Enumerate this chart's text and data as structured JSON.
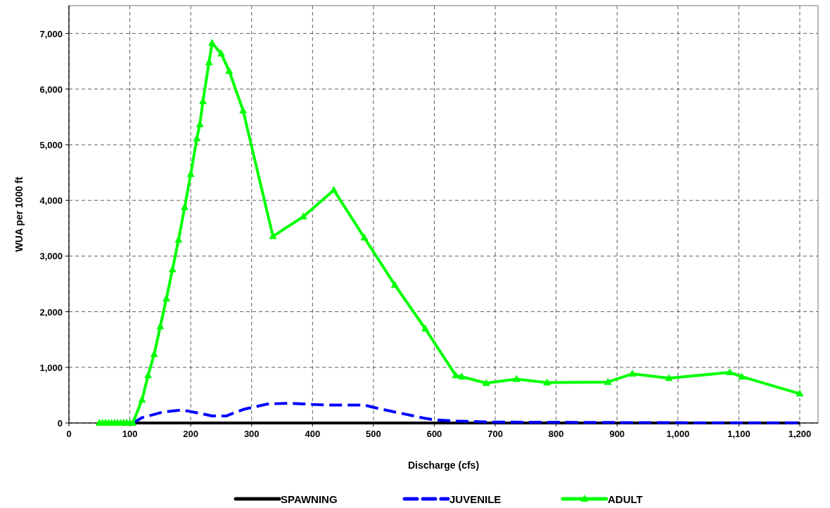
{
  "chart_data": {
    "type": "line",
    "xlabel": "Discharge (cfs)",
    "ylabel": "WUA per 1000 ft",
    "xlim": [
      0,
      1230
    ],
    "ylim": [
      0,
      7500
    ],
    "xticks": [
      0,
      100,
      200,
      300,
      400,
      500,
      600,
      700,
      800,
      900,
      {
        "value": 1000,
        "label": "1,000"
      },
      {
        "value": 1100,
        "label": "1,100"
      },
      {
        "value": 1200,
        "label": "1,200"
      }
    ],
    "yticks": [
      0,
      {
        "value": 1000,
        "label": "1,000"
      },
      {
        "value": 2000,
        "label": "2,000"
      },
      {
        "value": 3000,
        "label": "3,000"
      },
      {
        "value": 4000,
        "label": "4,000"
      },
      {
        "value": 5000,
        "label": "5,000"
      },
      {
        "value": 6000,
        "label": "6,000"
      },
      {
        "value": 7000,
        "label": "7,000"
      }
    ],
    "grid": true,
    "legend": "bottom",
    "series": [
      {
        "name": "SPAWNING",
        "color": "#000000",
        "line_style": "solid",
        "marker": "none",
        "x": [
          105,
          1200
        ],
        "values": [
          0,
          0
        ]
      },
      {
        "name": "JUVENILE",
        "color": "#0000ff",
        "line_style": "dashed",
        "marker": "none",
        "x": [
          105,
          120,
          155,
          180,
          190,
          220,
          235,
          258,
          287,
          326,
          361,
          400,
          426,
          485,
          500,
          533,
          586,
          602,
          636,
          700,
          800,
          900,
          1000,
          1100,
          1200
        ],
        "values": [
          0,
          95,
          199,
          228,
          225,
          164,
          126,
          126,
          246,
          341,
          355,
          333,
          322,
          322,
          281,
          202,
          81,
          54,
          34,
          15,
          12,
          8,
          5,
          3,
          2
        ]
      },
      {
        "name": "ADULT",
        "color": "#00ff00",
        "line_style": "solid",
        "marker": "triangle",
        "x": [
          50,
          55,
          60,
          65,
          70,
          75,
          80,
          85,
          90,
          95,
          100,
          105,
          120,
          130,
          140,
          150,
          160,
          170,
          180,
          190,
          200,
          210,
          215,
          220,
          230,
          235,
          250,
          263,
          286,
          335,
          385,
          435,
          485,
          535,
          585,
          635,
          645,
          685,
          735,
          785,
          885,
          925,
          985,
          1085,
          1105,
          1200
        ],
        "values": [
          0,
          0,
          0,
          0,
          0,
          0,
          0,
          0,
          0,
          0,
          0,
          0,
          417,
          856,
          1236,
          1736,
          2235,
          2758,
          3292,
          3877,
          4472,
          5114,
          5367,
          5780,
          6479,
          6827,
          6637,
          6327,
          5613,
          3354,
          3710,
          4186,
          3330,
          2482,
          1695,
          857,
          831,
          716,
          789,
          726,
          736,
          883,
          804,
          909,
          831,
          526
        ]
      }
    ]
  }
}
